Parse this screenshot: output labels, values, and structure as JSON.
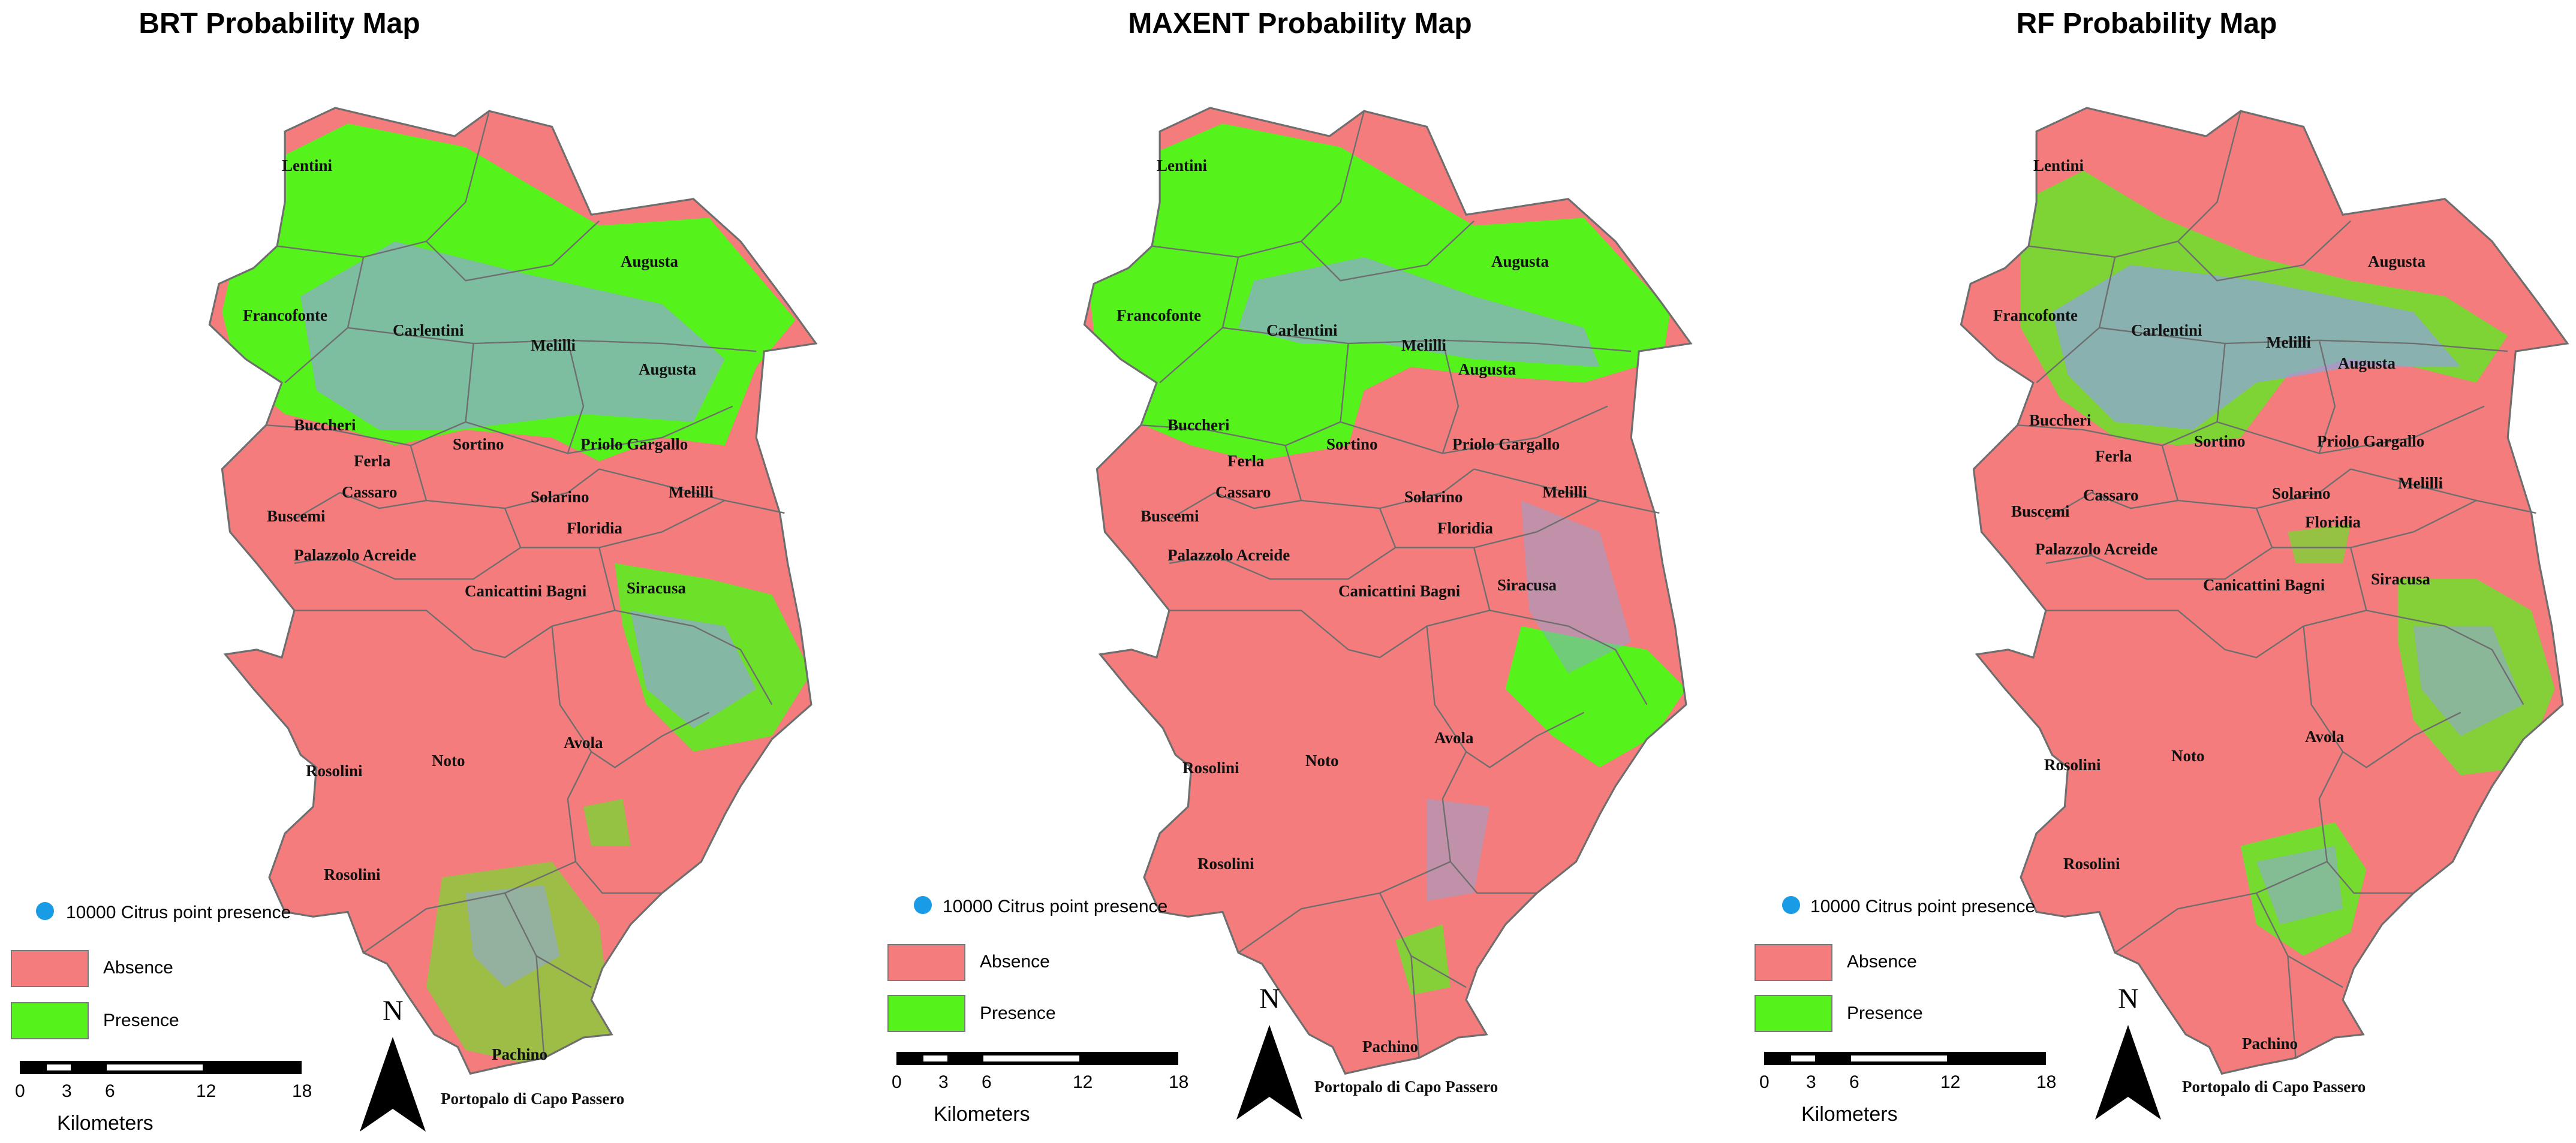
{
  "colors": {
    "absence": "#f47c7c",
    "presence": "#55f21c",
    "citrus_point": "#1a9be6",
    "point_cluster": "#8ea6d8",
    "boundary": "#6e6e6e"
  },
  "panels": [
    {
      "title": "BRT Probability Map"
    },
    {
      "title": "MAXENT Probability Map"
    },
    {
      "title": "RF Probability Map"
    }
  ],
  "towns": {
    "lentini": "Lentini",
    "francofonte": "Francofonte",
    "carlentini": "Carlentini",
    "augusta": "Augusta",
    "melilli": "Melilli",
    "buccheri": "Buccheri",
    "ferla": "Ferla",
    "cassaro": "Cassaro",
    "sortino": "Sortino",
    "priolo_gargallo": "Priolo Gargallo",
    "buscemi": "Buscemi",
    "solarino": "Solarino",
    "floridia": "Floridia",
    "palazzolo_acreide": "Palazzolo Acreide",
    "canicattini_bagni": "Canicattini Bagni",
    "siracusa": "Siracusa",
    "noto": "Noto",
    "avola": "Avola",
    "rosolini": "Rosolini",
    "pachino": "Pachino",
    "portopalo": "Portopalo di Capo Passero"
  },
  "legend": {
    "point_label": "10000 Citrus point presence",
    "absence_label": "Absence",
    "presence_label": "Presence"
  },
  "scalebar": {
    "ticks": [
      "0",
      "3",
      "6",
      "12",
      "18"
    ],
    "unit": "Kilometers"
  },
  "north_arrow": {
    "label": "N"
  }
}
